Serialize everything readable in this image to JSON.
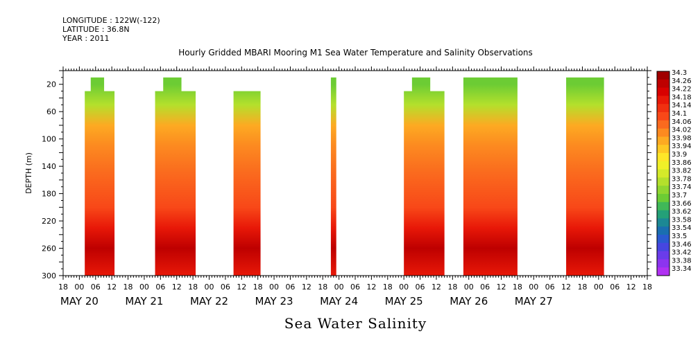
{
  "header": {
    "longitude": "LONGITUDE : 122W(-122)",
    "latitude": "LATITUDE : 36.8N",
    "year": "YEAR : 2011"
  },
  "chart_data": {
    "type": "heatmap",
    "title": "Hourly Gridded MBARI Mooring M1 Sea Water Temperature and Salinity Observations",
    "xlabel": "",
    "ylabel": "DEPTH (m)",
    "caption": "Sea Water Salinity",
    "y_ticks": [
      20,
      60,
      100,
      140,
      180,
      220,
      260,
      300
    ],
    "ylim": [
      300,
      0
    ],
    "x_hour_labels": [
      "18",
      "00",
      "06",
      "12",
      "18",
      "00",
      "06",
      "12",
      "18",
      "00",
      "06",
      "12",
      "18",
      "00",
      "06",
      "12",
      "18",
      "00",
      "06",
      "12",
      "18",
      "00",
      "06",
      "12",
      "18",
      "00",
      "06",
      "12",
      "18",
      "00",
      "06",
      "12",
      "18",
      "00",
      "06",
      "12",
      "18"
    ],
    "x_date_labels": [
      "MAY 20",
      "MAY 21",
      "MAY 22",
      "MAY 23",
      "MAY 24",
      "MAY 25",
      "MAY 26",
      "MAY 27"
    ],
    "x_range_hours_from_may20_18": [
      0,
      216
    ],
    "colorbar": {
      "levels": [
        "34.3",
        "34.26",
        "34.22",
        "34.18",
        "34.14",
        "34.1",
        "34.06",
        "34.02",
        "33.98",
        "33.94",
        "33.9",
        "33.86",
        "33.82",
        "33.78",
        "33.74",
        "33.7",
        "33.66",
        "33.62",
        "33.58",
        "33.54",
        "33.5",
        "33.46",
        "33.42",
        "33.38",
        "33.34"
      ],
      "colors": [
        "#a00000",
        "#be0000",
        "#d80000",
        "#e81808",
        "#f03010",
        "#f84818",
        "#fa6a1e",
        "#fc8a20",
        "#fdaa22",
        "#fec824",
        "#fee628",
        "#f0f028",
        "#d4ea2a",
        "#b4e02c",
        "#90d630",
        "#6ccc34",
        "#40b858",
        "#24a078",
        "#1c8894",
        "#1a6eb0",
        "#2a5ad0",
        "#4646e0",
        "#6a3cea",
        "#8c34ef",
        "#b030f2"
      ]
    },
    "segments": [
      {
        "start_hour": 8,
        "end_hour": 19,
        "top_depth": 20,
        "cap_depth": 40
      },
      {
        "start_hour": 34,
        "end_hour": 49,
        "top_depth": 20,
        "cap_depth": 40
      },
      {
        "start_hour": 63,
        "end_hour": 73,
        "top_depth": 40,
        "cap_depth": 40
      },
      {
        "start_hour": 99,
        "end_hour": 101,
        "top_depth": 20,
        "cap_depth": 20
      },
      {
        "start_hour": 126,
        "end_hour": 141,
        "top_depth": 20,
        "cap_depth": 40
      },
      {
        "start_hour": 148,
        "end_hour": 168,
        "top_depth": 20,
        "cap_depth": 20
      },
      {
        "start_hour": 186,
        "end_hour": 200,
        "top_depth": 20,
        "cap_depth": 20
      }
    ],
    "salinity_profile_by_depth": [
      {
        "depth": 20,
        "value": 33.68
      },
      {
        "depth": 50,
        "value": 33.8
      },
      {
        "depth": 80,
        "value": 33.96
      },
      {
        "depth": 110,
        "value": 34.04
      },
      {
        "depth": 150,
        "value": 34.08
      },
      {
        "depth": 200,
        "value": 34.1
      },
      {
        "depth": 230,
        "value": 34.18
      },
      {
        "depth": 260,
        "value": 34.24
      },
      {
        "depth": 300,
        "value": 34.18
      }
    ]
  }
}
